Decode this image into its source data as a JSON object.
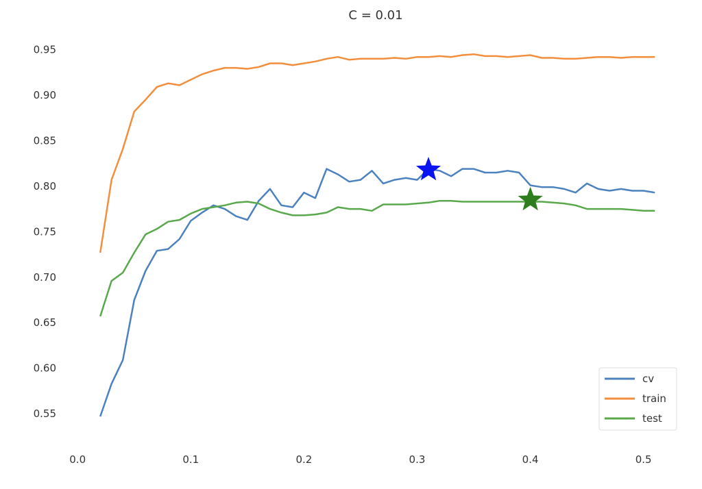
{
  "chart_data": {
    "type": "line",
    "title": "C = 0.01",
    "xlabel": "",
    "ylabel": "",
    "xlim": [
      -0.008,
      0.522
    ],
    "ylim": [
      0.523,
      0.976
    ],
    "xticks": [
      0.0,
      0.1,
      0.2,
      0.3,
      0.4,
      0.5
    ],
    "xtick_labels": [
      "0.0",
      "0.1",
      "0.2",
      "0.3",
      "0.4",
      "0.5"
    ],
    "yticks": [
      0.55,
      0.6,
      0.65,
      0.7,
      0.75,
      0.8,
      0.85,
      0.9,
      0.95
    ],
    "ytick_labels": [
      "0.55",
      "0.60",
      "0.65",
      "0.70",
      "0.75",
      "0.80",
      "0.85",
      "0.90",
      "0.95"
    ],
    "grid": false,
    "legend_position": "lower-right",
    "x": [
      0.02,
      0.03,
      0.04,
      0.05,
      0.06,
      0.07,
      0.08,
      0.09,
      0.1,
      0.11,
      0.12,
      0.13,
      0.14,
      0.15,
      0.16,
      0.17,
      0.18,
      0.19,
      0.2,
      0.21,
      0.22,
      0.23,
      0.24,
      0.25,
      0.26,
      0.27,
      0.28,
      0.29,
      0.3,
      0.31,
      0.32,
      0.33,
      0.34,
      0.35,
      0.36,
      0.37,
      0.38,
      0.39,
      0.4,
      0.41,
      0.42,
      0.43,
      0.44,
      0.45,
      0.46,
      0.47,
      0.48,
      0.49,
      0.5,
      0.51
    ],
    "series": [
      {
        "name": "cv",
        "color": "#4c81bf",
        "values": [
          0.547,
          0.583,
          0.609,
          0.675,
          0.707,
          0.729,
          0.731,
          0.742,
          0.762,
          0.771,
          0.779,
          0.775,
          0.767,
          0.763,
          0.784,
          0.797,
          0.779,
          0.777,
          0.793,
          0.787,
          0.819,
          0.813,
          0.805,
          0.807,
          0.817,
          0.803,
          0.807,
          0.809,
          0.807,
          0.819,
          0.817,
          0.811,
          0.819,
          0.819,
          0.815,
          0.815,
          0.817,
          0.815,
          0.801,
          0.799,
          0.799,
          0.797,
          0.793,
          0.803,
          0.797,
          0.795,
          0.797,
          0.795,
          0.795,
          0.793
        ]
      },
      {
        "name": "train",
        "color": "#f28e3c",
        "values": [
          0.727,
          0.807,
          0.841,
          0.882,
          0.895,
          0.909,
          0.913,
          0.911,
          0.917,
          0.923,
          0.927,
          0.93,
          0.93,
          0.929,
          0.931,
          0.935,
          0.935,
          0.933,
          0.935,
          0.937,
          0.94,
          0.942,
          0.939,
          0.94,
          0.94,
          0.94,
          0.941,
          0.94,
          0.942,
          0.942,
          0.943,
          0.942,
          0.944,
          0.945,
          0.943,
          0.943,
          0.942,
          0.943,
          0.944,
          0.941,
          0.941,
          0.94,
          0.94,
          0.941,
          0.942,
          0.942,
          0.941,
          0.942,
          0.942,
          0.942
        ]
      },
      {
        "name": "test",
        "color": "#59a84b",
        "values": [
          0.657,
          0.696,
          0.705,
          0.727,
          0.747,
          0.753,
          0.761,
          0.763,
          0.77,
          0.775,
          0.777,
          0.779,
          0.782,
          0.783,
          0.781,
          0.775,
          0.771,
          0.768,
          0.768,
          0.769,
          0.771,
          0.777,
          0.775,
          0.775,
          0.773,
          0.78,
          0.78,
          0.78,
          0.781,
          0.782,
          0.784,
          0.784,
          0.783,
          0.783,
          0.783,
          0.783,
          0.783,
          0.783,
          0.783,
          0.783,
          0.782,
          0.781,
          0.779,
          0.775,
          0.775,
          0.775,
          0.775,
          0.774,
          0.773,
          0.773
        ]
      }
    ],
    "markers": [
      {
        "series": "cv",
        "x": 0.31,
        "y": 0.818,
        "color": "#0a14f0",
        "shape": "star"
      },
      {
        "series": "test",
        "x": 0.4,
        "y": 0.785,
        "color": "#2e7d1f",
        "shape": "star"
      }
    ]
  }
}
